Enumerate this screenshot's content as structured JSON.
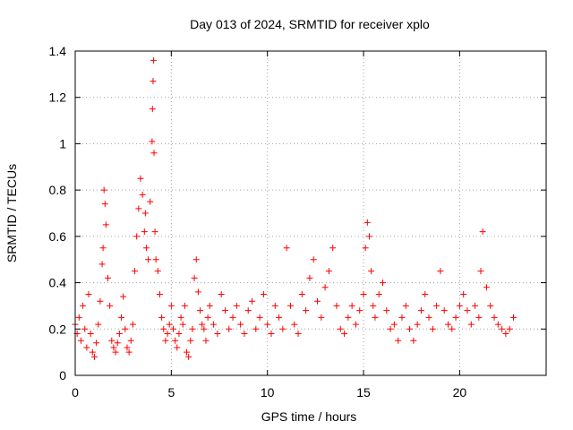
{
  "chart_data": {
    "type": "scatter",
    "title": "Day 013 of 2024, SRMTID for receiver xplo",
    "xlabel": "GPS time / hours",
    "ylabel": "SRMTID / TECUs",
    "xlim": [
      0,
      24.5
    ],
    "ylim": [
      0,
      1.4
    ],
    "xticks": [
      0,
      5,
      10,
      15,
      20
    ],
    "xtick_labels": [
      "0",
      "5",
      "10",
      "15",
      "20"
    ],
    "yticks": [
      0,
      0.2,
      0.4,
      0.6,
      0.8,
      1,
      1.2,
      1.4
    ],
    "ytick_labels": [
      "0",
      "0.2",
      "0.4",
      "0.6",
      "0.8",
      "1",
      "1.2",
      "1.4"
    ],
    "grid": true,
    "marker": "+",
    "color": "#ff0000",
    "series": [
      {
        "name": "SRMTID",
        "x": [
          0.0,
          0.1,
          0.2,
          0.3,
          0.4,
          0.5,
          0.6,
          0.7,
          0.8,
          0.9,
          1.0,
          1.1,
          1.2,
          1.3,
          1.4,
          1.45,
          1.5,
          1.55,
          1.6,
          1.7,
          1.8,
          1.9,
          2.0,
          2.1,
          2.2,
          2.3,
          2.4,
          2.5,
          2.6,
          2.7,
          2.8,
          2.9,
          3.0,
          3.1,
          3.2,
          3.3,
          3.4,
          3.5,
          3.6,
          3.65,
          3.7,
          3.8,
          3.9,
          4.0,
          4.02,
          4.05,
          4.08,
          4.1,
          4.15,
          4.2,
          4.3,
          4.4,
          4.5,
          4.6,
          4.7,
          4.8,
          4.9,
          5.0,
          5.1,
          5.2,
          5.3,
          5.4,
          5.5,
          5.6,
          5.7,
          5.8,
          5.9,
          6.0,
          6.1,
          6.2,
          6.3,
          6.4,
          6.5,
          6.6,
          6.7,
          6.8,
          6.9,
          7.0,
          7.2,
          7.4,
          7.6,
          7.8,
          8.0,
          8.2,
          8.4,
          8.6,
          8.8,
          9.0,
          9.2,
          9.4,
          9.6,
          9.8,
          10.0,
          10.2,
          10.4,
          10.6,
          10.8,
          11.0,
          11.2,
          11.4,
          11.6,
          11.8,
          12.0,
          12.2,
          12.4,
          12.6,
          12.8,
          13.0,
          13.2,
          13.4,
          13.6,
          13.8,
          14.0,
          14.2,
          14.4,
          14.6,
          14.8,
          15.0,
          15.1,
          15.2,
          15.3,
          15.4,
          15.5,
          15.6,
          15.8,
          16.0,
          16.2,
          16.4,
          16.6,
          16.8,
          17.0,
          17.2,
          17.4,
          17.6,
          17.8,
          18.0,
          18.2,
          18.4,
          18.6,
          18.8,
          19.0,
          19.2,
          19.4,
          19.6,
          19.8,
          20.0,
          20.2,
          20.4,
          20.6,
          20.8,
          21.0,
          21.1,
          21.2,
          21.4,
          21.6,
          21.8,
          22.0,
          22.2,
          22.4,
          22.6,
          22.8
        ],
        "y": [
          0.22,
          0.18,
          0.25,
          0.15,
          0.3,
          0.2,
          0.12,
          0.35,
          0.18,
          0.1,
          0.08,
          0.14,
          0.22,
          0.32,
          0.48,
          0.55,
          0.8,
          0.74,
          0.65,
          0.42,
          0.3,
          0.15,
          0.12,
          0.1,
          0.14,
          0.18,
          0.25,
          0.34,
          0.2,
          0.12,
          0.1,
          0.15,
          0.22,
          0.45,
          0.6,
          0.72,
          0.85,
          0.78,
          0.62,
          0.7,
          0.55,
          0.5,
          0.75,
          1.01,
          1.15,
          1.27,
          1.36,
          0.96,
          0.62,
          0.5,
          0.45,
          0.35,
          0.25,
          0.2,
          0.15,
          0.18,
          0.22,
          0.3,
          0.2,
          0.15,
          0.12,
          0.18,
          0.25,
          0.22,
          0.3,
          0.1,
          0.08,
          0.15,
          0.2,
          0.42,
          0.5,
          0.36,
          0.28,
          0.22,
          0.2,
          0.15,
          0.25,
          0.3,
          0.22,
          0.18,
          0.35,
          0.28,
          0.2,
          0.25,
          0.3,
          0.22,
          0.18,
          0.28,
          0.32,
          0.2,
          0.25,
          0.35,
          0.22,
          0.18,
          0.3,
          0.25,
          0.2,
          0.55,
          0.3,
          0.22,
          0.18,
          0.35,
          0.28,
          0.42,
          0.5,
          0.32,
          0.25,
          0.38,
          0.45,
          0.55,
          0.3,
          0.2,
          0.18,
          0.25,
          0.3,
          0.22,
          0.28,
          0.35,
          0.55,
          0.66,
          0.6,
          0.45,
          0.3,
          0.25,
          0.35,
          0.4,
          0.28,
          0.2,
          0.22,
          0.15,
          0.25,
          0.3,
          0.2,
          0.15,
          0.22,
          0.28,
          0.35,
          0.25,
          0.2,
          0.3,
          0.45,
          0.28,
          0.22,
          0.2,
          0.25,
          0.3,
          0.35,
          0.28,
          0.22,
          0.3,
          0.25,
          0.45,
          0.62,
          0.38,
          0.3,
          0.25,
          0.22,
          0.2,
          0.18,
          0.2,
          0.25
        ]
      }
    ]
  }
}
